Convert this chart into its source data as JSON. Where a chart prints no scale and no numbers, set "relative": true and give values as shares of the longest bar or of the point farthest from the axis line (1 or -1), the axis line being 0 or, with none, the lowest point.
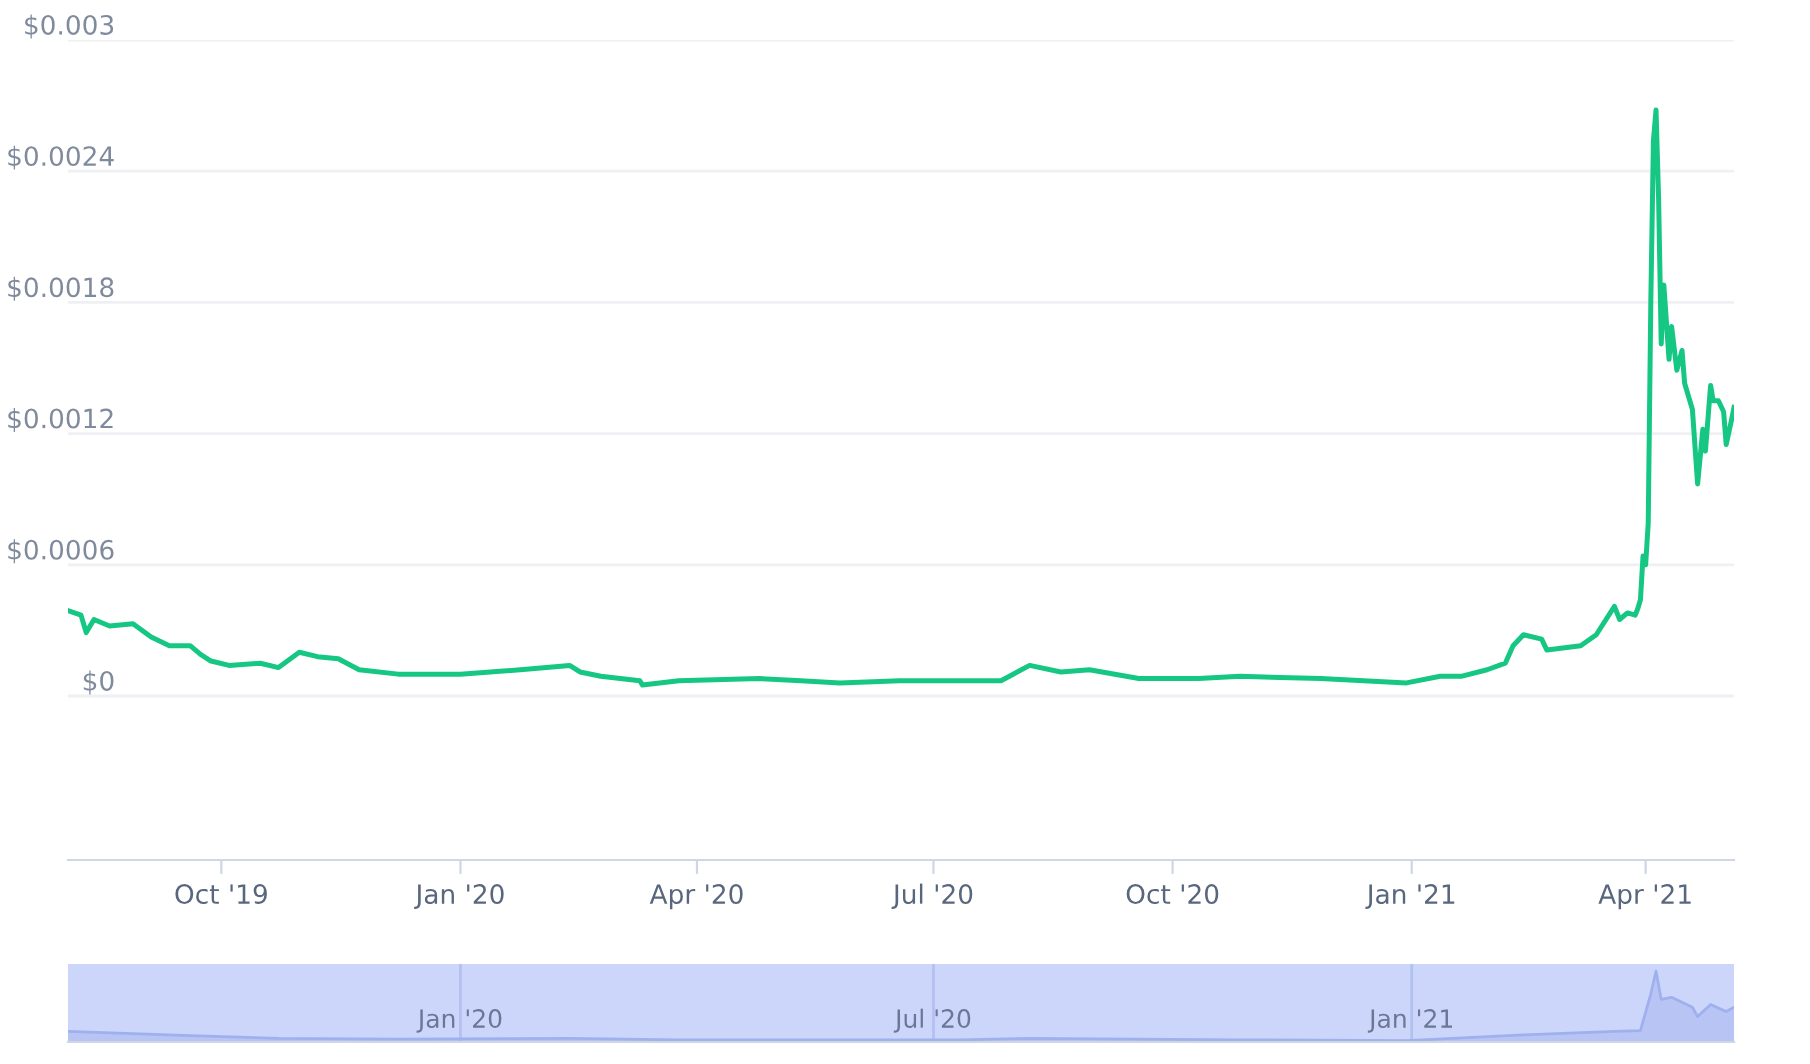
{
  "chart_data": [
    {
      "type": "line",
      "grid": "y",
      "marker": "none",
      "line_style": "solid",
      "xlim": [
        "2019-08-03",
        "2021-05-05"
      ],
      "xticks": [
        {
          "value": "2019-10-01",
          "label": "Oct '19"
        },
        {
          "value": "2020-01-01",
          "label": "Jan '20"
        },
        {
          "value": "2020-04-01",
          "label": "Apr '20"
        },
        {
          "value": "2020-07-01",
          "label": "Jul '20"
        },
        {
          "value": "2020-10-01",
          "label": "Oct '20"
        },
        {
          "value": "2021-01-01",
          "label": "Jan '21"
        },
        {
          "value": "2021-04-01",
          "label": "Apr '21"
        }
      ],
      "ylim": [
        -0.00075,
        0.003
      ],
      "yticks": [
        {
          "value": 0,
          "label": "$0"
        },
        {
          "value": 0.0006,
          "label": "$0.0006"
        },
        {
          "value": 0.0012,
          "label": "$0.0012"
        },
        {
          "value": 0.0018,
          "label": "$0.0018"
        },
        {
          "value": 0.0024,
          "label": "$0.0024"
        },
        {
          "value": 0.003,
          "label": "$0.003"
        }
      ],
      "series": [
        {
          "color": "#16c784",
          "x": [
            "2019-08-03",
            "2019-08-08",
            "2019-08-10",
            "2019-08-13",
            "2019-08-19",
            "2019-08-28",
            "2019-09-04",
            "2019-09-11",
            "2019-09-19",
            "2019-09-23",
            "2019-09-27",
            "2019-10-04",
            "2019-10-16",
            "2019-10-23",
            "2019-10-31",
            "2019-11-07",
            "2019-11-15",
            "2019-11-23",
            "2019-12-08",
            "2020-01-01",
            "2020-01-24",
            "2020-02-12",
            "2020-02-16",
            "2020-02-24",
            "2020-03-10",
            "2020-03-11",
            "2020-03-25",
            "2020-04-25",
            "2020-05-11",
            "2020-05-26",
            "2020-06-18",
            "2020-07-11",
            "2020-07-27",
            "2020-08-07",
            "2020-08-19",
            "2020-08-30",
            "2020-09-18",
            "2020-10-11",
            "2020-10-27",
            "2020-11-27",
            "2020-12-30",
            "2021-01-12",
            "2021-01-20",
            "2021-01-30",
            "2021-02-06",
            "2021-02-09",
            "2021-02-13",
            "2021-02-20",
            "2021-02-22",
            "2021-03-07",
            "2021-03-13",
            "2021-03-20",
            "2021-03-22",
            "2021-03-25",
            "2021-03-28",
            "2021-03-29",
            "2021-03-30",
            "2021-03-31",
            "2021-04-01",
            "2021-04-02",
            "2021-04-03",
            "2021-04-04",
            "2021-04-05",
            "2021-04-06",
            "2021-04-07",
            "2021-04-08",
            "2021-04-10",
            "2021-04-11",
            "2021-04-13",
            "2021-04-15",
            "2021-04-16",
            "2021-04-19",
            "2021-04-21",
            "2021-04-23",
            "2021-04-24",
            "2021-04-26",
            "2021-04-27",
            "2021-04-29",
            "2021-05-01",
            "2021-05-02",
            "2021-05-04",
            "2021-05-05"
          ],
          "values": [
            0.00039,
            0.00037,
            0.00029,
            0.00035,
            0.00032,
            0.00033,
            0.00027,
            0.00023,
            0.00023,
            0.00019,
            0.00016,
            0.00014,
            0.00015,
            0.00013,
            0.0002,
            0.00018,
            0.00017,
            0.00012,
            0.0001,
            0.0001,
            0.00012,
            0.00014,
            0.00011,
            9e-05,
            7e-05,
            5e-05,
            7e-05,
            8e-05,
            7e-05,
            6e-05,
            7e-05,
            7e-05,
            7e-05,
            0.00014,
            0.00011,
            0.00012,
            8e-05,
            8e-05,
            9e-05,
            8e-05,
            6e-05,
            9e-05,
            9e-05,
            0.00012,
            0.00015,
            0.00023,
            0.00028,
            0.00026,
            0.00021,
            0.00023,
            0.00028,
            0.00041,
            0.00035,
            0.00038,
            0.00037,
            0.0004,
            0.00044,
            0.00064,
            0.0006,
            0.00079,
            0.00181,
            0.00254,
            0.00268,
            0.00227,
            0.00161,
            0.00188,
            0.00154,
            0.00169,
            0.00149,
            0.00158,
            0.00143,
            0.00131,
            0.00097,
            0.00122,
            0.00112,
            0.00142,
            0.00135,
            0.00135,
            0.0013,
            0.00115,
            0.00126,
            0.00132
          ]
        }
      ]
    },
    {
      "type": "area",
      "relative": true,
      "grid": "x",
      "xlim": [
        "2019-08-03",
        "2021-05-05"
      ],
      "xticks": [
        {
          "value": "2020-01-01",
          "label": "Jan '20"
        },
        {
          "value": "2020-07-01",
          "label": "Jul '20"
        },
        {
          "value": "2021-01-01",
          "label": "Jan '21"
        }
      ],
      "series": [
        {
          "color": "#9fb0ee",
          "x": [
            "2019-08-03",
            "2019-09-19",
            "2019-10-23",
            "2019-12-08",
            "2020-02-12",
            "2020-03-25",
            "2020-07-11",
            "2020-08-07",
            "2020-10-27",
            "2020-12-30",
            "2021-02-13",
            "2021-03-20",
            "2021-03-30",
            "2021-04-03",
            "2021-04-05",
            "2021-04-07",
            "2021-04-11",
            "2021-04-19",
            "2021-04-21",
            "2021-04-26",
            "2021-05-02",
            "2021-05-05"
          ],
          "values": [
            0.15,
            0.09,
            0.05,
            0.04,
            0.05,
            0.03,
            0.03,
            0.05,
            0.03,
            0.02,
            0.1,
            0.15,
            0.16,
            0.68,
            1,
            0.6,
            0.63,
            0.49,
            0.36,
            0.53,
            0.43,
            0.49
          ]
        }
      ]
    }
  ]
}
